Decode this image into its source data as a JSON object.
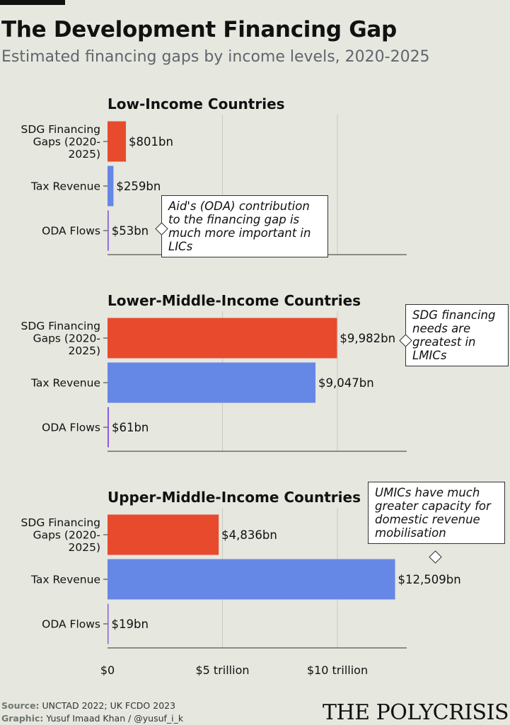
{
  "header": {
    "title": "The Development Financing Gap",
    "subtitle": "Estimated financing gaps by income levels, 2020-2025"
  },
  "colors": {
    "sdg": "#e84a2e",
    "tax": "#6587e6",
    "oda": "#8a5cd8",
    "background": "#e6e7df"
  },
  "chart_data": {
    "type": "bar",
    "orientation": "horizontal",
    "categories": [
      "SDG Financing Gaps (2020-2025)",
      "Tax Revenue",
      "ODA Flows"
    ],
    "category_lines": [
      [
        "SDG Financing",
        "Gaps (2020-",
        "2025)"
      ],
      [
        "Tax Revenue"
      ],
      [
        "ODA Flows"
      ]
    ],
    "xlim": [
      0,
      13000
    ],
    "x_unit": "billion USD",
    "x_ticks": [
      {
        "value": 0,
        "label": "$0"
      },
      {
        "value": 5000,
        "label": "$5 trillion"
      },
      {
        "value": 10000,
        "label": "$10 trillion"
      }
    ],
    "grid": true,
    "panels": [
      {
        "title": "Low-Income Countries",
        "values": [
          801,
          259,
          53
        ],
        "labels": [
          "$801bn",
          "$259bn",
          "$53bn"
        ]
      },
      {
        "title": "Lower-Middle-Income Countries",
        "values": [
          9982,
          9047,
          61
        ],
        "labels": [
          "$9,982bn",
          "$9,047bn",
          "$61bn"
        ]
      },
      {
        "title": "Upper-Middle-Income Countries",
        "values": [
          4836,
          12509,
          19
        ],
        "labels": [
          "$4,836bn",
          "$12,509bn",
          "$19bn"
        ]
      }
    ]
  },
  "annotations": [
    {
      "text": "Aid's (ODA) contribution to the financing gap is much more important in LICs"
    },
    {
      "text": "SDG financing needs are greatest in LMICs"
    },
    {
      "text": "UMICs have much greater capacity for domestic revenue mobilisation"
    }
  ],
  "footer": {
    "source_label": "Source:",
    "source_text": "UNCTAD 2022; UK FCDO 2023",
    "graphic_label": "Graphic:",
    "graphic_text": "Yusuf Imaad Khan / @yusuf_i_k",
    "brand": "THE POLYCRISIS"
  }
}
